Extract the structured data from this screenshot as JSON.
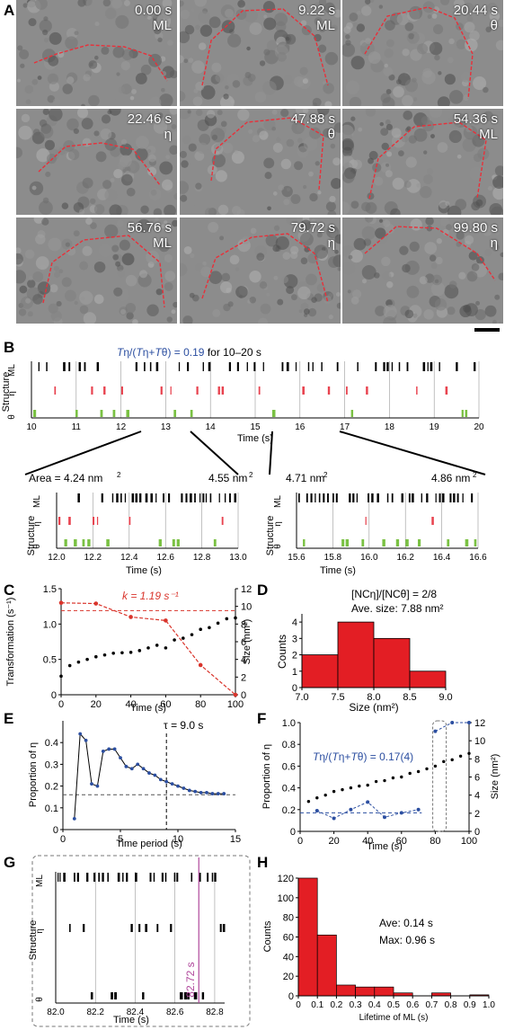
{
  "panels": {
    "A": "A",
    "B": "B",
    "C": "C",
    "D": "D",
    "E": "E",
    "F": "F",
    "G": "G",
    "H": "H"
  },
  "panel_a": {
    "tiles": [
      {
        "time": "0.00 s",
        "phase": "ML"
      },
      {
        "time": "9.22 s",
        "phase": "ML"
      },
      {
        "time": "20.44 s",
        "phase": "θ"
      },
      {
        "time": "22.46 s",
        "phase": "η"
      },
      {
        "time": "47.88 s",
        "phase": "θ"
      },
      {
        "time": "54.36 s",
        "phase": "ML"
      },
      {
        "time": "56.76 s",
        "phase": "ML"
      },
      {
        "time": "79.72 s",
        "phase": "η"
      },
      {
        "time": "99.80 s",
        "phase": "η"
      }
    ],
    "colors": {
      "outline": "#e8303a",
      "tile_bg": "#8c8c8c"
    }
  },
  "chart_data": [
    {
      "id": "B-main",
      "type": "event-raster",
      "title": "Tη/(Tη+Tθ) = 0.19 for 10–20 s",
      "title_parts": {
        "a": "T",
        "b": "η",
        "c": "/(",
        "d": "T",
        "e": "η",
        "f": "+",
        "g": "T",
        "h": "θ",
        "i": ") = 0.19",
        "j": " for 10–20 s"
      },
      "ylabel": "Structure",
      "xlabel": "Time (s)",
      "rows": [
        "ML",
        "η",
        "θ"
      ],
      "xlim": [
        10,
        20
      ],
      "ticks": [
        "10",
        "11",
        "12",
        "13",
        "14",
        "15",
        "16",
        "17",
        "18",
        "19",
        "20"
      ],
      "colors": {
        "ML": "#000000",
        "eta": "#e8434f",
        "theta": "#7ac143",
        "title": "#2b4ea0"
      }
    },
    {
      "id": "B-zoom-left",
      "type": "event-raster",
      "ylabel": "Structure",
      "xlabel": "Time (s)",
      "xlim": [
        12.0,
        13.0
      ],
      "ticks": [
        "12.0",
        "12.2",
        "12.4",
        "12.6",
        "12.8",
        "13.0"
      ],
      "annotations": {
        "area_left": "Area = 4.24 nm",
        "area_right": "4.55 nm",
        "sup": "2"
      }
    },
    {
      "id": "B-zoom-right",
      "type": "event-raster",
      "ylabel": "Structure",
      "xlabel": "Time (s)",
      "xlim": [
        15.6,
        16.6
      ],
      "ticks": [
        "15.6",
        "15.8",
        "16.0",
        "16.2",
        "16.4",
        "16.6"
      ],
      "annotations": {
        "area_left": "4.71 nm",
        "area_right": "4.86 nm",
        "sup": "2"
      }
    },
    {
      "id": "C",
      "type": "line",
      "ylabel_left": "Transformation (s⁻¹)",
      "ylabel_right": "Size (nm²)",
      "xlabel": "Time (s)",
      "xlim": [
        0,
        100
      ],
      "ylim_left": [
        0,
        1.5
      ],
      "ylim_right": [
        0,
        12
      ],
      "xticks": [
        "0",
        "20",
        "40",
        "60",
        "80",
        "100"
      ],
      "yticks_left": [
        "0",
        "0.5",
        "1.0",
        "1.5"
      ],
      "yticks_right": [
        "0",
        "2",
        "4",
        "6",
        "8",
        "10",
        "12"
      ],
      "annotation": "k = 1.19 s⁻¹",
      "k_value": 1.19,
      "series": [
        {
          "name": "transformation",
          "color": "#d9342b",
          "x": [
            0,
            20,
            40,
            60,
            80,
            100
          ],
          "y": [
            1.3,
            1.29,
            1.1,
            1.05,
            0.42,
            0.0
          ]
        },
        {
          "name": "size",
          "color": "#000000",
          "x": [
            0,
            5,
            10,
            15,
            20,
            25,
            30,
            35,
            40,
            45,
            50,
            55,
            60,
            65,
            70,
            75,
            80,
            85,
            90,
            95,
            100
          ],
          "y": [
            2.1,
            3.3,
            3.7,
            4.0,
            4.3,
            4.5,
            4.7,
            4.75,
            4.8,
            5.0,
            5.3,
            5.6,
            5.3,
            6.2,
            6.4,
            6.8,
            7.4,
            7.6,
            8.1,
            8.6,
            8.7
          ]
        }
      ]
    },
    {
      "id": "D",
      "type": "bar",
      "ylabel": "Counts",
      "xlabel": "Size (nm²)",
      "bin_edges": [
        7.0,
        7.5,
        8.0,
        8.5,
        9.0
      ],
      "values": [
        2,
        4,
        3,
        1
      ],
      "xticks": [
        "7.0",
        "7.5",
        "8.0",
        "8.5",
        "9.0"
      ],
      "yticks": [
        "0",
        "1",
        "2",
        "3",
        "4"
      ],
      "ylim": [
        0,
        4.5
      ],
      "annotation_1": "[NCη]/[NCθ] = 2/8",
      "annotation_2": "Ave. size: 7.88 nm²",
      "color": "#e31e24"
    },
    {
      "id": "E",
      "type": "line",
      "ylabel": "Proportion of η",
      "xlabel": "Time period (s)",
      "xlim": [
        0,
        15
      ],
      "ylim": [
        0,
        0.5
      ],
      "xticks": [
        "0",
        "5",
        "10",
        "15"
      ],
      "yticks": [
        "0",
        "0.1",
        "0.2",
        "0.3",
        "0.4"
      ],
      "annotation": "τ = 9.0 s",
      "tau": 9.0,
      "baseline": 0.16,
      "color": "#2b4ea0",
      "x": [
        1.0,
        1.5,
        2.0,
        2.5,
        3.0,
        3.5,
        4.0,
        4.5,
        5.0,
        5.5,
        6.0,
        6.5,
        7.0,
        7.5,
        8.0,
        8.5,
        9.0,
        9.5,
        10.0,
        10.5,
        11.0,
        11.5,
        12.0,
        12.5,
        13.0,
        13.5,
        14.0
      ],
      "y": [
        0.05,
        0.44,
        0.41,
        0.21,
        0.2,
        0.36,
        0.37,
        0.37,
        0.33,
        0.29,
        0.28,
        0.3,
        0.28,
        0.26,
        0.25,
        0.23,
        0.22,
        0.21,
        0.2,
        0.19,
        0.18,
        0.175,
        0.17,
        0.17,
        0.165,
        0.165,
        0.165
      ]
    },
    {
      "id": "F",
      "type": "scatter",
      "ylabel_left": "Proportion of η",
      "ylabel_right": "Size (nm²)",
      "xlabel": "Time (s)",
      "xlim": [
        0,
        100
      ],
      "ylim_left": [
        0,
        1.0
      ],
      "ylim_right": [
        0,
        12
      ],
      "xticks": [
        "0",
        "20",
        "40",
        "60",
        "80",
        "100"
      ],
      "yticks_left": [
        "0",
        "0.2",
        "0.4",
        "0.6",
        "0.8",
        "1.0"
      ],
      "yticks_right": [
        "0",
        "2",
        "4",
        "6",
        "8",
        "10",
        "12"
      ],
      "annotation": "Tη/(Tη+Tθ) = 0.17(4)",
      "ann_parts": {
        "a": "T",
        "b": "η",
        "c": "/(",
        "d": "T",
        "e": "η",
        "f": "+",
        "g": "T",
        "h": "θ",
        "i": ") = 0.17(4)"
      },
      "baseline": 0.17,
      "series": [
        {
          "name": "proportion",
          "color": "#2b4ea0",
          "x": [
            10,
            20,
            30,
            40,
            50,
            60,
            70,
            80,
            90,
            100
          ],
          "y": [
            0.19,
            0.12,
            0.2,
            0.27,
            0.13,
            0.17,
            0.2,
            0.92,
            1.0,
            1.0
          ]
        },
        {
          "name": "size",
          "color": "#000000",
          "x": [
            5,
            10,
            15,
            20,
            25,
            30,
            35,
            40,
            45,
            50,
            55,
            60,
            65,
            70,
            75,
            80,
            85,
            90,
            95,
            100
          ],
          "y": [
            3.3,
            3.7,
            4.0,
            4.4,
            4.6,
            4.8,
            5.0,
            5.1,
            5.5,
            5.6,
            5.9,
            6.0,
            6.4,
            6.6,
            6.9,
            7.2,
            7.7,
            7.9,
            8.3,
            8.6
          ]
        }
      ]
    },
    {
      "id": "G",
      "type": "event-raster",
      "ylabel": "Structure",
      "xlabel": "Time (s)",
      "xlim": [
        82.0,
        82.85
      ],
      "ticks": [
        "82.0",
        "82.2",
        "82.4",
        "82.6",
        "82.8"
      ],
      "annotation": "82.72 s",
      "marker_time": 82.72,
      "colors": {
        "marker": "#b0489c"
      }
    },
    {
      "id": "H",
      "type": "bar",
      "ylabel": "Counts",
      "xlabel": "Lifetime of ML (s)",
      "bin_edges": [
        0,
        0.1,
        0.2,
        0.3,
        0.4,
        0.5,
        0.6,
        0.7,
        0.8,
        0.9,
        1.0
      ],
      "values": [
        120,
        62,
        11,
        9,
        9,
        3,
        0,
        3,
        0,
        1
      ],
      "xticks": [
        "0",
        "0.1",
        "0.2",
        "0.3",
        "0.4",
        "0.5",
        "0.6",
        "0.7",
        "0.8",
        "0.9",
        "1.0"
      ],
      "yticks": [
        "0",
        "20",
        "40",
        "60",
        "80",
        "100",
        "120"
      ],
      "ylim": [
        0,
        120
      ],
      "annotation_1": "Ave: 0.14 s",
      "annotation_2": "Max: 0.96 s",
      "color": "#e31e24"
    }
  ]
}
